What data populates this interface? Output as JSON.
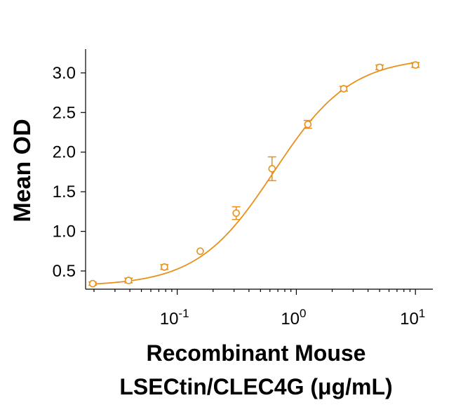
{
  "chart_data": {
    "type": "scatter",
    "xscale": "log",
    "xlabel_line1": "Recombinant Mouse",
    "xlabel_line2": "LSECtin/CLEC4G (μg/mL)",
    "ylabel": "Mean OD",
    "xlim": [
      0.017,
      14
    ],
    "ylim": [
      0.27,
      3.3
    ],
    "grid": false,
    "color": "#e8901a",
    "x_ticks": [
      {
        "value": 0.1,
        "base": "10",
        "exp": "-1"
      },
      {
        "value": 1,
        "base": "10",
        "exp": "0"
      },
      {
        "value": 10,
        "base": "10",
        "exp": "1"
      }
    ],
    "y_ticks": [
      {
        "value": 0.5,
        "label": "0.5"
      },
      {
        "value": 1.0,
        "label": "1.0"
      },
      {
        "value": 1.5,
        "label": "1.5"
      },
      {
        "value": 2.0,
        "label": "2.0"
      },
      {
        "value": 2.5,
        "label": "2.5"
      },
      {
        "value": 3.0,
        "label": "3.0"
      }
    ],
    "points": [
      {
        "x": 0.0195,
        "y": 0.34,
        "err": 0.02
      },
      {
        "x": 0.039,
        "y": 0.38,
        "err": 0.03
      },
      {
        "x": 0.078,
        "y": 0.55,
        "err": 0.03
      },
      {
        "x": 0.156,
        "y": 0.75,
        "err": 0.0
      },
      {
        "x": 0.3125,
        "y": 1.23,
        "err": 0.08
      },
      {
        "x": 0.625,
        "y": 1.79,
        "err": 0.15
      },
      {
        "x": 1.25,
        "y": 2.35,
        "err": 0.05
      },
      {
        "x": 2.5,
        "y": 2.8,
        "err": 0.03
      },
      {
        "x": 5,
        "y": 3.07,
        "err": 0.03
      },
      {
        "x": 10,
        "y": 3.1,
        "err": 0.03
      }
    ],
    "fit": {
      "bottom": 0.31,
      "top": 3.2,
      "ec50": 0.65,
      "hill": 1.35
    }
  }
}
